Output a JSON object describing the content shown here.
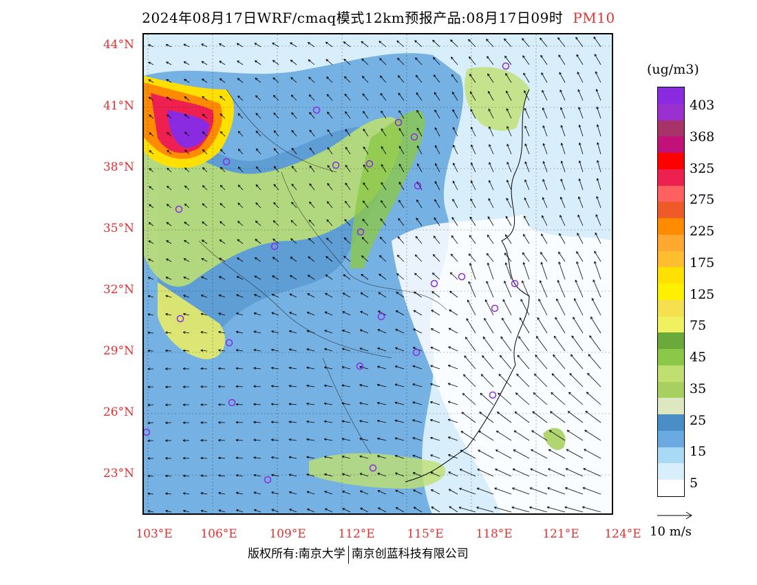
{
  "title": {
    "main": "2024年08月17日WRF/cmaq模式12km预报产品:08月17日09时",
    "pollutant": "PM10"
  },
  "axes": {
    "lat_labels": [
      "44°N",
      "41°N",
      "38°N",
      "35°N",
      "32°N",
      "29°N",
      "26°N",
      "23°N"
    ],
    "lon_labels": [
      "103°E",
      "106°E",
      "109°E",
      "112°E",
      "115°E",
      "118°E",
      "121°E",
      "124°E"
    ]
  },
  "colorbar": {
    "unit": "(ug/m3)",
    "labels": [
      "403",
      "368",
      "325",
      "275",
      "225",
      "175",
      "125",
      "75",
      "45",
      "35",
      "25",
      "15",
      "5"
    ],
    "colors_top_to_bottom": [
      "#8a2be2",
      "#9b30d0",
      "#a8336b",
      "#c2127a",
      "#ff0000",
      "#ee2050",
      "#ff6060",
      "#f05a28",
      "#ff8c00",
      "#ffa830",
      "#ffbe30",
      "#ffe000",
      "#fff000",
      "#f5e050",
      "#f0f060",
      "#6aaa3a",
      "#8cc848",
      "#bfe070",
      "#a8d060",
      "#dde8c0",
      "#4a8ec8",
      "#6aaae0",
      "#a8daf5",
      "#d8eefa",
      "#ffffff"
    ]
  },
  "wind_reference": {
    "label": "10 m/s"
  },
  "copyright": {
    "left": "版权所有:南京大学",
    "right": "南京创蓝科技有限公司"
  }
}
